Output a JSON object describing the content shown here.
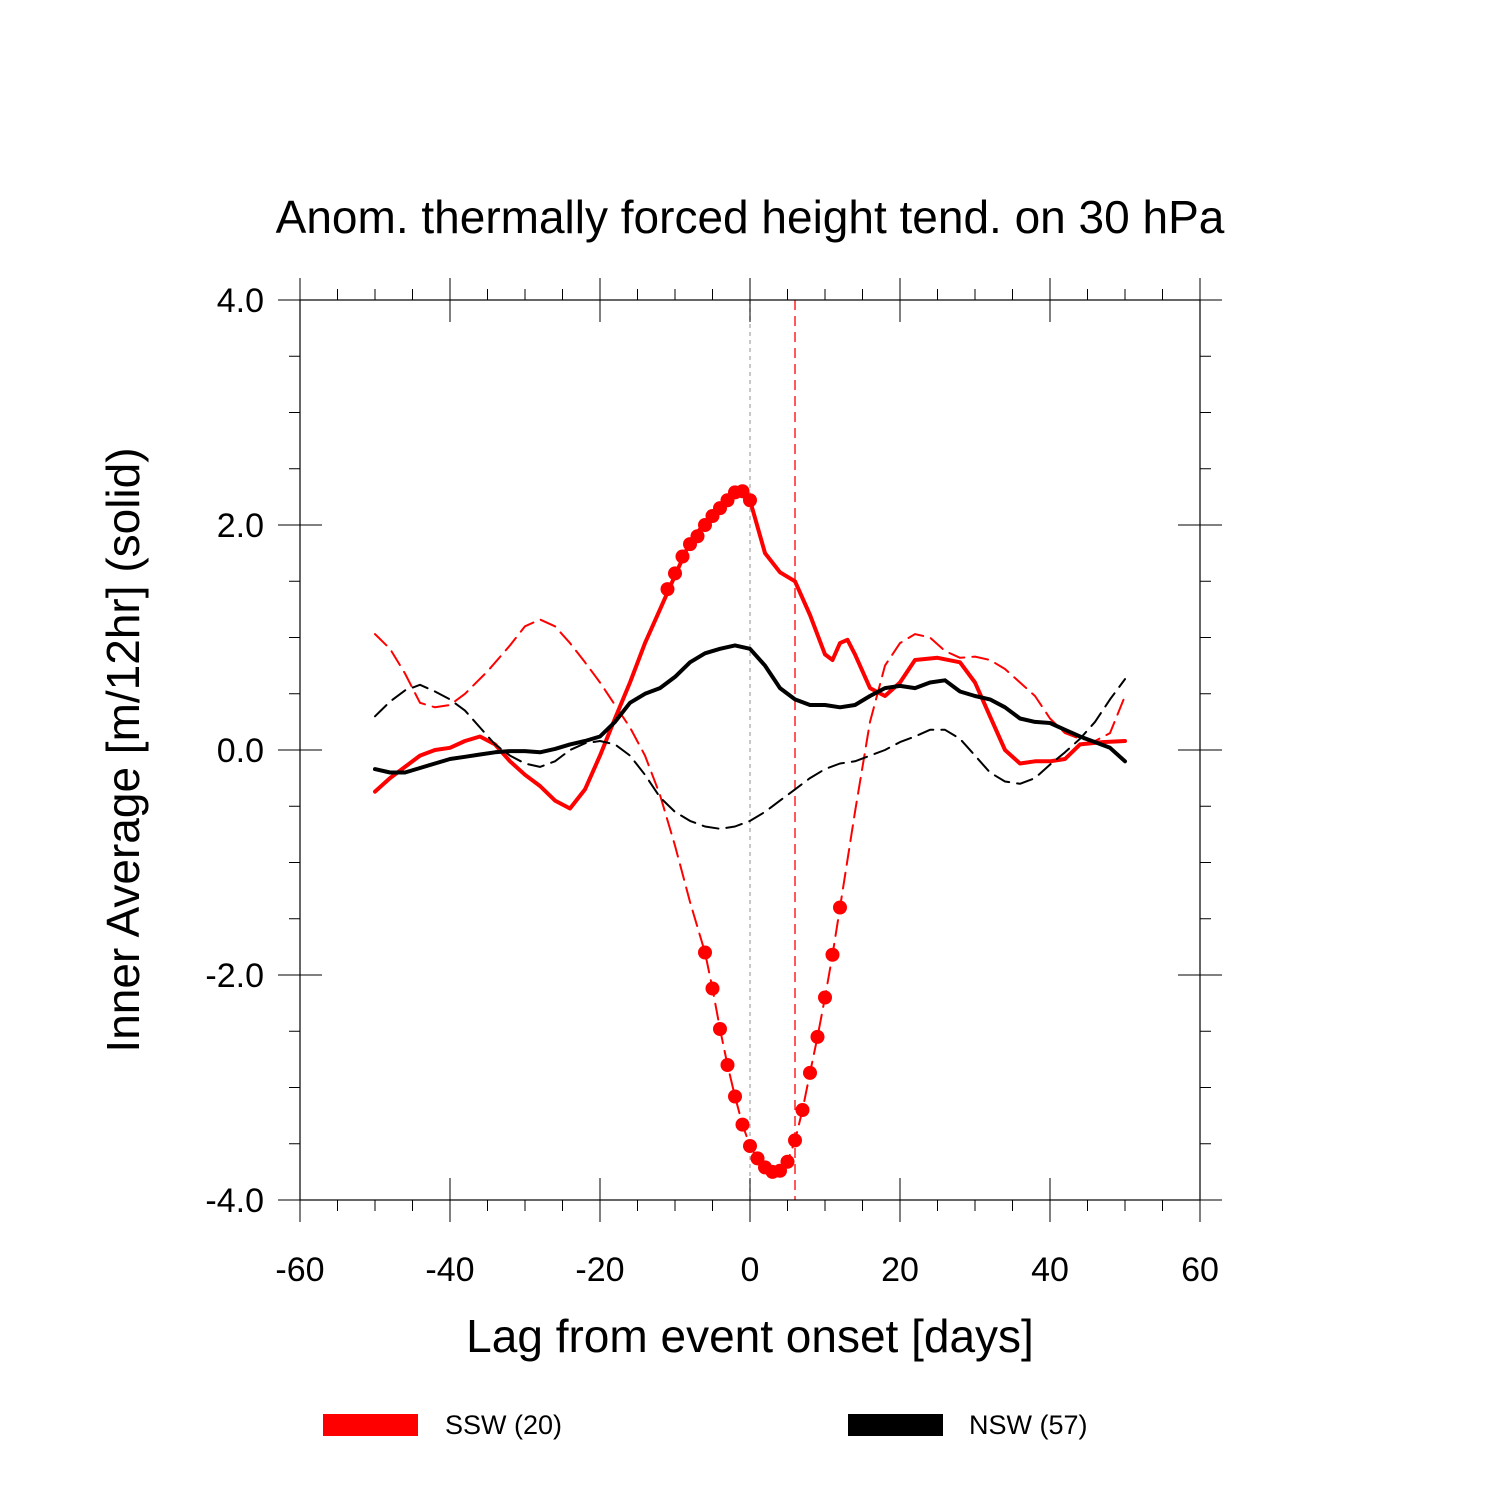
{
  "chart_data": {
    "type": "line",
    "title": "Anom. thermally forced height tend. on 30 hPa",
    "xlabel": "Lag from event onset [days]",
    "ylabel": "Inner Average [m/12hr] (solid)",
    "xlim": [
      -60,
      60
    ],
    "ylim": [
      -4,
      4
    ],
    "xticks": [
      "-60",
      "-40",
      "-20",
      "0",
      "20",
      "40",
      "60"
    ],
    "yticks": [
      "-4.0",
      "-2.0",
      "0.0",
      "2.0",
      "4.0"
    ],
    "grid": false,
    "legend_position": "bottom",
    "reference_lines": [
      {
        "x": 0,
        "color": "#aaaaaa",
        "style": "dotted"
      },
      {
        "x": 6,
        "color": "#ff0000",
        "style": "dashed"
      }
    ],
    "series": [
      {
        "name": "SSW (20)",
        "line": "solid",
        "color": "#ff0000",
        "points": [
          [
            -50,
            -0.37
          ],
          [
            -48,
            -0.25
          ],
          [
            -46,
            -0.15
          ],
          [
            -44,
            -0.05
          ],
          [
            -42,
            0.0
          ],
          [
            -40,
            0.02
          ],
          [
            -38,
            0.08
          ],
          [
            -36,
            0.12
          ],
          [
            -34,
            0.05
          ],
          [
            -32,
            -0.1
          ],
          [
            -30,
            -0.22
          ],
          [
            -28,
            -0.32
          ],
          [
            -26,
            -0.45
          ],
          [
            -24,
            -0.52
          ],
          [
            -22,
            -0.35
          ],
          [
            -20,
            -0.05
          ],
          [
            -18,
            0.28
          ],
          [
            -16,
            0.6
          ],
          [
            -14,
            0.95
          ],
          [
            -12,
            1.25
          ],
          [
            -10,
            1.55
          ],
          [
            -8,
            1.85
          ],
          [
            -6,
            2.02
          ],
          [
            -4,
            2.15
          ],
          [
            -2,
            2.3
          ],
          [
            0,
            2.22
          ],
          [
            2,
            1.75
          ],
          [
            4,
            1.58
          ],
          [
            6,
            1.5
          ],
          [
            8,
            1.2
          ],
          [
            10,
            0.85
          ],
          [
            11,
            0.8
          ],
          [
            12,
            0.95
          ],
          [
            13,
            0.98
          ],
          [
            14,
            0.85
          ],
          [
            16,
            0.55
          ],
          [
            18,
            0.48
          ],
          [
            20,
            0.6
          ],
          [
            22,
            0.8
          ],
          [
            25,
            0.82
          ],
          [
            28,
            0.78
          ],
          [
            30,
            0.6
          ],
          [
            32,
            0.3
          ],
          [
            34,
            0.0
          ],
          [
            36,
            -0.12
          ],
          [
            38,
            -0.1
          ],
          [
            40,
            -0.1
          ],
          [
            42,
            -0.08
          ],
          [
            44,
            0.05
          ],
          [
            47,
            0.07
          ],
          [
            50,
            0.08
          ]
        ],
        "markers": [
          [
            -11,
            1.43
          ],
          [
            -10,
            1.57
          ],
          [
            -9,
            1.72
          ],
          [
            -8,
            1.83
          ],
          [
            -7,
            1.9
          ],
          [
            -6,
            2.0
          ],
          [
            -5,
            2.08
          ],
          [
            -4,
            2.15
          ],
          [
            -3,
            2.22
          ],
          [
            -2,
            2.29
          ],
          [
            -1,
            2.3
          ],
          [
            0,
            2.22
          ]
        ]
      },
      {
        "name": "",
        "line": "dashed",
        "color": "#ff0000",
        "points": [
          [
            -50,
            1.03
          ],
          [
            -48,
            0.9
          ],
          [
            -46,
            0.68
          ],
          [
            -44,
            0.42
          ],
          [
            -42,
            0.38
          ],
          [
            -40,
            0.4
          ],
          [
            -38,
            0.5
          ],
          [
            -35,
            0.7
          ],
          [
            -32,
            0.93
          ],
          [
            -30,
            1.1
          ],
          [
            -28,
            1.16
          ],
          [
            -26,
            1.1
          ],
          [
            -24,
            0.95
          ],
          [
            -22,
            0.78
          ],
          [
            -20,
            0.6
          ],
          [
            -18,
            0.4
          ],
          [
            -16,
            0.2
          ],
          [
            -14,
            -0.05
          ],
          [
            -12,
            -0.4
          ],
          [
            -10,
            -0.85
          ],
          [
            -8,
            -1.35
          ],
          [
            -6,
            -1.8
          ],
          [
            -5,
            -2.12
          ],
          [
            -4,
            -2.48
          ],
          [
            -3,
            -2.8
          ],
          [
            -2,
            -3.08
          ],
          [
            -1,
            -3.33
          ],
          [
            0,
            -3.52
          ],
          [
            1,
            -3.63
          ],
          [
            2,
            -3.71
          ],
          [
            3,
            -3.75
          ],
          [
            4,
            -3.74
          ],
          [
            5,
            -3.66
          ],
          [
            6,
            -3.47
          ],
          [
            7,
            -3.2
          ],
          [
            8,
            -2.87
          ],
          [
            9,
            -2.55
          ],
          [
            10,
            -2.2
          ],
          [
            11,
            -1.82
          ],
          [
            12,
            -1.4
          ],
          [
            14,
            -0.55
          ],
          [
            16,
            0.25
          ],
          [
            18,
            0.75
          ],
          [
            20,
            0.95
          ],
          [
            22,
            1.03
          ],
          [
            24,
            1.0
          ],
          [
            26,
            0.88
          ],
          [
            28,
            0.82
          ],
          [
            30,
            0.83
          ],
          [
            32,
            0.8
          ],
          [
            34,
            0.72
          ],
          [
            36,
            0.6
          ],
          [
            38,
            0.48
          ],
          [
            40,
            0.28
          ],
          [
            42,
            0.15
          ],
          [
            44,
            0.1
          ],
          [
            46,
            0.08
          ],
          [
            48,
            0.15
          ],
          [
            50,
            0.48
          ]
        ],
        "markers": [
          [
            -6,
            -1.8
          ],
          [
            -5,
            -2.12
          ],
          [
            -4,
            -2.48
          ],
          [
            -3,
            -2.8
          ],
          [
            -2,
            -3.08
          ],
          [
            -1,
            -3.33
          ],
          [
            0,
            -3.52
          ],
          [
            1,
            -3.63
          ],
          [
            2,
            -3.71
          ],
          [
            3,
            -3.75
          ],
          [
            4,
            -3.74
          ],
          [
            5,
            -3.66
          ],
          [
            6,
            -3.47
          ],
          [
            7,
            -3.2
          ],
          [
            8,
            -2.87
          ],
          [
            9,
            -2.55
          ],
          [
            10,
            -2.2
          ],
          [
            11,
            -1.82
          ],
          [
            12,
            -1.4
          ]
        ]
      },
      {
        "name": "NSW (57)",
        "line": "solid",
        "color": "#000000",
        "points": [
          [
            -50,
            -0.17
          ],
          [
            -48,
            -0.2
          ],
          [
            -46,
            -0.2
          ],
          [
            -44,
            -0.16
          ],
          [
            -42,
            -0.12
          ],
          [
            -40,
            -0.08
          ],
          [
            -38,
            -0.06
          ],
          [
            -36,
            -0.04
          ],
          [
            -34,
            -0.02
          ],
          [
            -32,
            -0.01
          ],
          [
            -30,
            -0.01
          ],
          [
            -28,
            -0.02
          ],
          [
            -26,
            0.01
          ],
          [
            -24,
            0.05
          ],
          [
            -22,
            0.08
          ],
          [
            -20,
            0.12
          ],
          [
            -18,
            0.25
          ],
          [
            -16,
            0.42
          ],
          [
            -14,
            0.5
          ],
          [
            -12,
            0.55
          ],
          [
            -10,
            0.65
          ],
          [
            -8,
            0.78
          ],
          [
            -6,
            0.86
          ],
          [
            -4,
            0.9
          ],
          [
            -2,
            0.93
          ],
          [
            0,
            0.9
          ],
          [
            2,
            0.75
          ],
          [
            4,
            0.55
          ],
          [
            6,
            0.45
          ],
          [
            8,
            0.4
          ],
          [
            10,
            0.4
          ],
          [
            12,
            0.38
          ],
          [
            14,
            0.4
          ],
          [
            16,
            0.48
          ],
          [
            18,
            0.55
          ],
          [
            20,
            0.57
          ],
          [
            22,
            0.55
          ],
          [
            24,
            0.6
          ],
          [
            26,
            0.62
          ],
          [
            28,
            0.52
          ],
          [
            30,
            0.48
          ],
          [
            32,
            0.45
          ],
          [
            34,
            0.38
          ],
          [
            36,
            0.28
          ],
          [
            38,
            0.25
          ],
          [
            40,
            0.24
          ],
          [
            42,
            0.18
          ],
          [
            44,
            0.12
          ],
          [
            46,
            0.07
          ],
          [
            48,
            0.02
          ],
          [
            50,
            -0.1
          ]
        ],
        "markers": []
      },
      {
        "name": "",
        "line": "dashed",
        "color": "#000000",
        "points": [
          [
            -50,
            0.3
          ],
          [
            -48,
            0.43
          ],
          [
            -46,
            0.53
          ],
          [
            -44,
            0.58
          ],
          [
            -42,
            0.52
          ],
          [
            -40,
            0.45
          ],
          [
            -38,
            0.35
          ],
          [
            -36,
            0.2
          ],
          [
            -34,
            0.05
          ],
          [
            -32,
            -0.05
          ],
          [
            -30,
            -0.12
          ],
          [
            -28,
            -0.15
          ],
          [
            -26,
            -0.1
          ],
          [
            -24,
            0.0
          ],
          [
            -22,
            0.06
          ],
          [
            -20,
            0.08
          ],
          [
            -18,
            0.05
          ],
          [
            -16,
            -0.05
          ],
          [
            -14,
            -0.22
          ],
          [
            -12,
            -0.42
          ],
          [
            -10,
            -0.55
          ],
          [
            -8,
            -0.63
          ],
          [
            -6,
            -0.68
          ],
          [
            -4,
            -0.7
          ],
          [
            -2,
            -0.68
          ],
          [
            0,
            -0.63
          ],
          [
            2,
            -0.55
          ],
          [
            4,
            -0.45
          ],
          [
            6,
            -0.35
          ],
          [
            8,
            -0.25
          ],
          [
            10,
            -0.17
          ],
          [
            12,
            -0.12
          ],
          [
            14,
            -0.1
          ],
          [
            16,
            -0.05
          ],
          [
            18,
            0.0
          ],
          [
            20,
            0.07
          ],
          [
            22,
            0.12
          ],
          [
            24,
            0.18
          ],
          [
            26,
            0.18
          ],
          [
            28,
            0.1
          ],
          [
            30,
            -0.05
          ],
          [
            32,
            -0.2
          ],
          [
            34,
            -0.28
          ],
          [
            36,
            -0.3
          ],
          [
            38,
            -0.25
          ],
          [
            40,
            -0.13
          ],
          [
            42,
            -0.02
          ],
          [
            44,
            0.1
          ],
          [
            46,
            0.25
          ],
          [
            48,
            0.45
          ],
          [
            50,
            0.63
          ]
        ],
        "markers": []
      }
    ],
    "legend": [
      {
        "label": "SSW (20)",
        "color": "#ff0000"
      },
      {
        "label": "NSW (57)",
        "color": "#000000"
      }
    ]
  }
}
